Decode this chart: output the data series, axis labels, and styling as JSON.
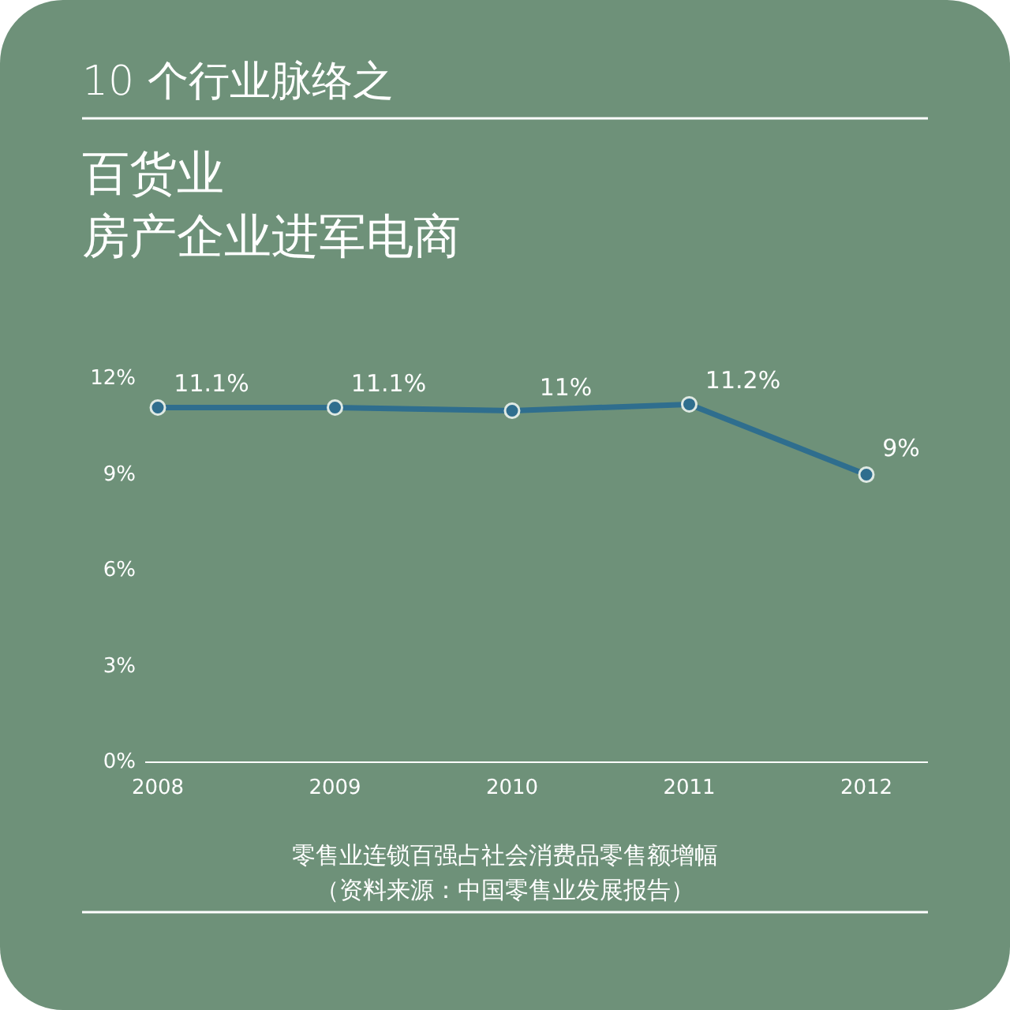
{
  "chart_data": {
    "type": "line",
    "title": "10 个行业脉络之",
    "subtitle": "百货业",
    "xlabel": "零售业连锁百强占社会消费品零售额增幅",
    "annotations": [
      "房产企业进军电商",
      "（资料来源：中国零售业发展报告）"
    ],
    "categories": [
      "2008",
      "2009",
      "2010",
      "2011",
      "2012"
    ],
    "series": [
      {
        "color": "#2f6e8e",
        "values": [
          11.1,
          11.1,
          11,
          11.2,
          9
        ],
        "value_labels": [
          "11.1%",
          "11.1%",
          "11%",
          "11.2%",
          "9%"
        ]
      }
    ],
    "ylim": [
      0,
      12
    ],
    "yticks": [
      {
        "value": 0,
        "label": "0%"
      },
      {
        "value": 3,
        "label": "3%"
      },
      {
        "value": 6,
        "label": "6%"
      },
      {
        "value": 9,
        "label": "9%"
      },
      {
        "value": 12,
        "label": "12%"
      }
    ],
    "marker": "circle",
    "line_style": "solid"
  }
}
